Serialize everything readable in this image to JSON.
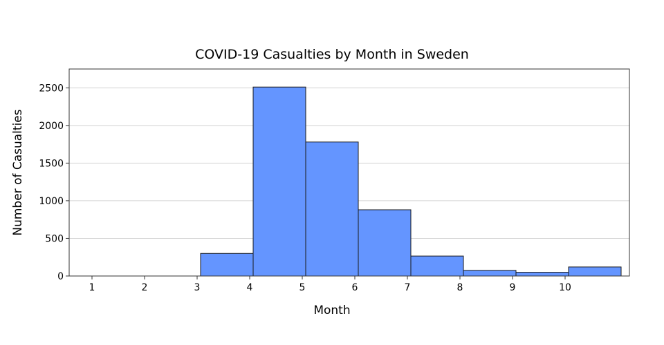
{
  "chart_data": {
    "type": "bar",
    "title": "COVID-19 Casualties by Month in Sweden",
    "xlabel": "Month",
    "ylabel": "Number of Casualties",
    "categories": [
      "1",
      "2",
      "3",
      "4",
      "5",
      "6",
      "7",
      "8",
      "9",
      "10"
    ],
    "values": [
      0,
      0,
      300,
      2510,
      1780,
      880,
      265,
      75,
      50,
      120
    ],
    "ylim": [
      0,
      2750
    ],
    "yticks": [
      0,
      500,
      1000,
      1500,
      2000,
      2500
    ],
    "grid": true,
    "legend": "none",
    "colors": {
      "bar": "#6495ff",
      "bar_edge": "#1a1a1a",
      "grid": "#d3d3d3"
    }
  }
}
